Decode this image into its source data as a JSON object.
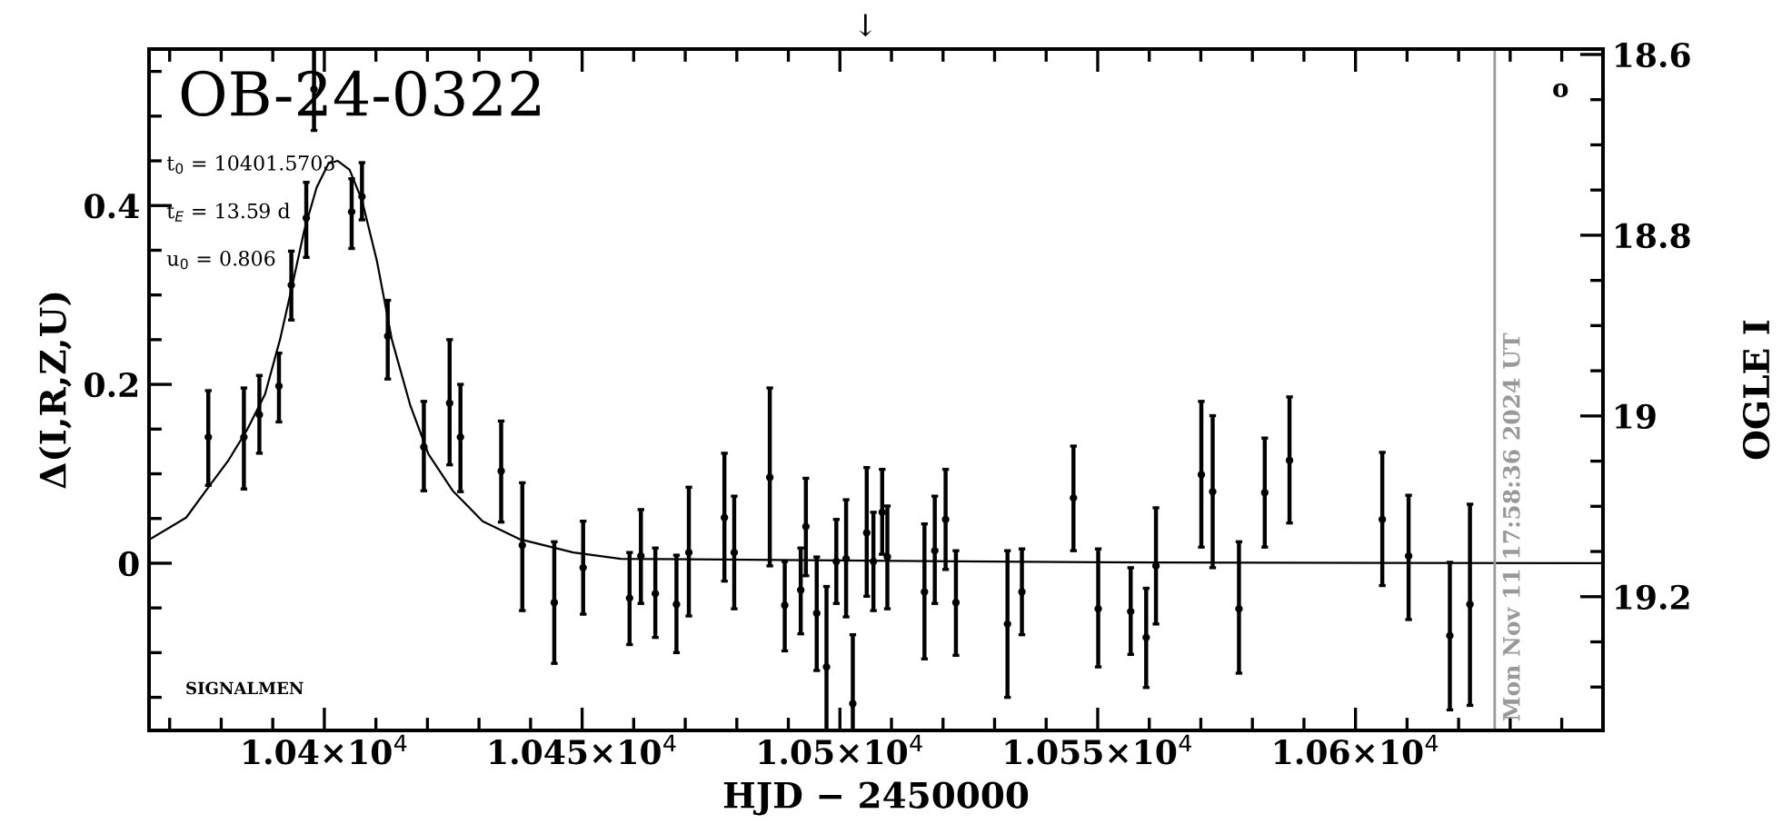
{
  "chart_data": {
    "type": "scatter",
    "title": "OB-24-0322",
    "xlabel": "HJD − 2450000",
    "ylabel": "Δ(I,R,Z,U)",
    "y2label": "OGLE I",
    "annotations": [
      "t$_{0}$ = 10401.5703",
      "t$_{E}$ = 13.59 d",
      "u$_{0}$ = 0.806",
      "SIGNALMEN",
      "o",
      "↓",
      "Mon Nov 11 17:58:36 2024 UT"
    ],
    "xlim": [
      10366,
      10648
    ],
    "ylim": [
      -0.187,
      0.575
    ],
    "y2lim": [
      19.348,
      18.594
    ],
    "xticks": [
      {
        "value": 10370,
        "label": null
      },
      {
        "value": 10380,
        "label": null
      },
      {
        "value": 10390,
        "label": null
      },
      {
        "value": 10400,
        "label": "1.04×10$^{4}$"
      },
      {
        "value": 10410,
        "label": null
      },
      {
        "value": 10420,
        "label": null
      },
      {
        "value": 10430,
        "label": null
      },
      {
        "value": 10440,
        "label": null
      },
      {
        "value": 10450,
        "label": "1.045×10$^{4}$"
      },
      {
        "value": 10460,
        "label": null
      },
      {
        "value": 10470,
        "label": null
      },
      {
        "value": 10480,
        "label": null
      },
      {
        "value": 10490,
        "label": null
      },
      {
        "value": 10500,
        "label": "1.05×10$^{4}$"
      },
      {
        "value": 10510,
        "label": null
      },
      {
        "value": 10520,
        "label": null
      },
      {
        "value": 10530,
        "label": null
      },
      {
        "value": 10540,
        "label": null
      },
      {
        "value": 10550,
        "label": "1.055×10$^{4}$"
      },
      {
        "value": 10560,
        "label": null
      },
      {
        "value": 10570,
        "label": null
      },
      {
        "value": 10580,
        "label": null
      },
      {
        "value": 10590,
        "label": null
      },
      {
        "value": 10600,
        "label": "1.06×10$^{4}$"
      },
      {
        "value": 10610,
        "label": null
      },
      {
        "value": 10620,
        "label": null
      },
      {
        "value": 10630,
        "label": null
      },
      {
        "value": 10640,
        "label": null
      }
    ],
    "yticks": [
      {
        "value": -0.15,
        "label": null
      },
      {
        "value": -0.1,
        "label": null
      },
      {
        "value": -0.05,
        "label": null
      },
      0,
      {
        "value": 0.05,
        "label": null
      },
      {
        "value": 0.1,
        "label": null
      },
      {
        "value": 0.15,
        "label": null
      },
      0.2,
      {
        "value": 0.25,
        "label": null
      },
      {
        "value": 0.3,
        "label": null
      },
      {
        "value": 0.35,
        "label": null
      },
      0.4,
      {
        "value": 0.45,
        "label": null
      },
      {
        "value": 0.5,
        "label": null
      },
      {
        "value": 0.55,
        "label": null
      }
    ],
    "y2ticks": [
      18.6,
      {
        "value": 18.65,
        "label": null
      },
      {
        "value": 18.7,
        "label": null
      },
      {
        "value": 18.75,
        "label": null
      },
      18.8,
      {
        "value": 18.85,
        "label": null
      },
      {
        "value": 18.9,
        "label": null
      },
      {
        "value": 18.95,
        "label": null
      },
      19,
      {
        "value": 19.05,
        "label": null
      },
      {
        "value": 19.1,
        "label": null
      },
      {
        "value": 19.15,
        "label": null
      },
      19.2,
      {
        "value": 19.25,
        "label": null
      },
      {
        "value": 19.3,
        "label": null
      }
    ],
    "ref_lines": [
      {
        "axis": "x",
        "value": 10627,
        "color": "#999999"
      }
    ],
    "grid": false,
    "legend": false,
    "series": [
      {
        "color": "#000000",
        "marker": "circle",
        "x": [
          10377.5,
          10384.4,
          10387.4,
          10391.2,
          10393.6,
          10396.5,
          10398,
          10405.3,
          10407.3,
          10412.3,
          10419.3,
          10424.3,
          10426.4,
          10434.3,
          10438.4,
          10444.6,
          10450.2,
          10459.2,
          10461.4,
          10464.2,
          10468.3,
          10470.7,
          10477.6,
          10479.5,
          10486.4,
          10489.3,
          10492.4,
          10493.4,
          10495.5,
          10497.4,
          10499.3,
          10501.2,
          10502.5,
          10505.2,
          10506.5,
          10508.2,
          10509.2,
          10516.4,
          10518.4,
          10520.5,
          10522.5,
          10532.5,
          10535.3,
          10545.3,
          10550.1,
          10556.4,
          10559.4,
          10561.3,
          10570.1,
          10572.3,
          10577.4,
          10582.4,
          10587.2,
          10605.2,
          10610.3,
          10618.3,
          10622.2
        ],
        "values": [
          0.141,
          0.141,
          0.166,
          0.198,
          0.311,
          0.386,
          0.53,
          0.393,
          0.41,
          0.254,
          0.13,
          0.179,
          0.141,
          0.103,
          0.02,
          -0.044,
          -0.005,
          -0.039,
          0.008,
          -0.034,
          -0.046,
          0.012,
          0.051,
          0.012,
          0.096,
          -0.047,
          -0.03,
          0.041,
          -0.056,
          -0.116,
          0.002,
          0.005,
          -0.157,
          0.034,
          0.002,
          0.057,
          0.007,
          -0.032,
          0.014,
          0.049,
          -0.044,
          -0.068,
          -0.032,
          0.073,
          -0.051,
          -0.054,
          -0.083,
          -0.003,
          0.099,
          0.08,
          -0.051,
          0.079,
          0.115,
          0.049,
          0.008,
          -0.081,
          -0.046
        ],
        "errors": [
          [
            0.087,
            0.193
          ],
          [
            0.083,
            0.196
          ],
          [
            0.123,
            0.21
          ],
          [
            0.158,
            0.235
          ],
          [
            0.272,
            0.349
          ],
          [
            0.342,
            0.426
          ],
          [
            0.484,
            0.575
          ],
          [
            0.352,
            0.43
          ],
          [
            0.384,
            0.448
          ],
          [
            0.206,
            0.294
          ],
          [
            0.081,
            0.181
          ],
          [
            0.11,
            0.25
          ],
          [
            0.08,
            0.2
          ],
          [
            0.046,
            0.159
          ],
          [
            -0.053,
            0.09
          ],
          [
            -0.112,
            0.024
          ],
          [
            -0.057,
            0.047
          ],
          [
            -0.091,
            0.012
          ],
          [
            -0.045,
            0.06
          ],
          [
            -0.083,
            0.017
          ],
          [
            -0.1,
            0.009
          ],
          [
            -0.059,
            0.085
          ],
          [
            -0.02,
            0.123
          ],
          [
            -0.051,
            0.075
          ],
          [
            -0.003,
            0.196
          ],
          [
            -0.098,
            0.002
          ],
          [
            -0.079,
            0.017
          ],
          [
            -0.014,
            0.095
          ],
          [
            -0.12,
            0.007
          ],
          [
            -0.187,
            -0.026
          ],
          [
            -0.045,
            0.049
          ],
          [
            -0.06,
            0.071
          ],
          [
            -0.187,
            -0.08
          ],
          [
            -0.037,
            0.107
          ],
          [
            -0.053,
            0.057
          ],
          [
            0.01,
            0.105
          ],
          [
            -0.051,
            0.064
          ],
          [
            -0.107,
            0.044
          ],
          [
            -0.045,
            0.075
          ],
          [
            -0.007,
            0.105
          ],
          [
            -0.103,
            0.014
          ],
          [
            -0.15,
            0.014
          ],
          [
            -0.08,
            0.016
          ],
          [
            0.014,
            0.131
          ],
          [
            -0.116,
            0.016
          ],
          [
            -0.102,
            -0.005
          ],
          [
            -0.139,
            -0.028
          ],
          [
            -0.068,
            0.062
          ],
          [
            0.018,
            0.181
          ],
          [
            -0.005,
            0.165
          ],
          [
            -0.123,
            0.024
          ],
          [
            0.018,
            0.14
          ],
          [
            0.045,
            0.186
          ],
          [
            -0.025,
            0.124
          ],
          [
            -0.063,
            0.076
          ],
          [
            -0.164,
            0.001
          ],
          [
            -0.159,
            0.066
          ]
        ]
      },
      {
        "type": "line",
        "color": "#000000",
        "x": [
          10366.2,
          10373.2,
          10377.9,
          10381.4,
          10385,
          10388.5,
          10391.4,
          10393.8,
          10396.1,
          10398.5,
          10400.8,
          10402.6,
          10404.9,
          10407.3,
          10410.2,
          10413.1,
          10416.7,
          10420.2,
          10424.9,
          10430.7,
          10437.8,
          10448.3,
          10457.5,
          10550,
          10648
        ],
        "values": [
          0.027,
          0.051,
          0.088,
          0.115,
          0.149,
          0.189,
          0.25,
          0.311,
          0.372,
          0.42,
          0.447,
          0.45,
          0.44,
          0.406,
          0.338,
          0.25,
          0.176,
          0.122,
          0.081,
          0.047,
          0.027,
          0.012,
          0.005,
          0.001,
          0
        ]
      }
    ]
  }
}
